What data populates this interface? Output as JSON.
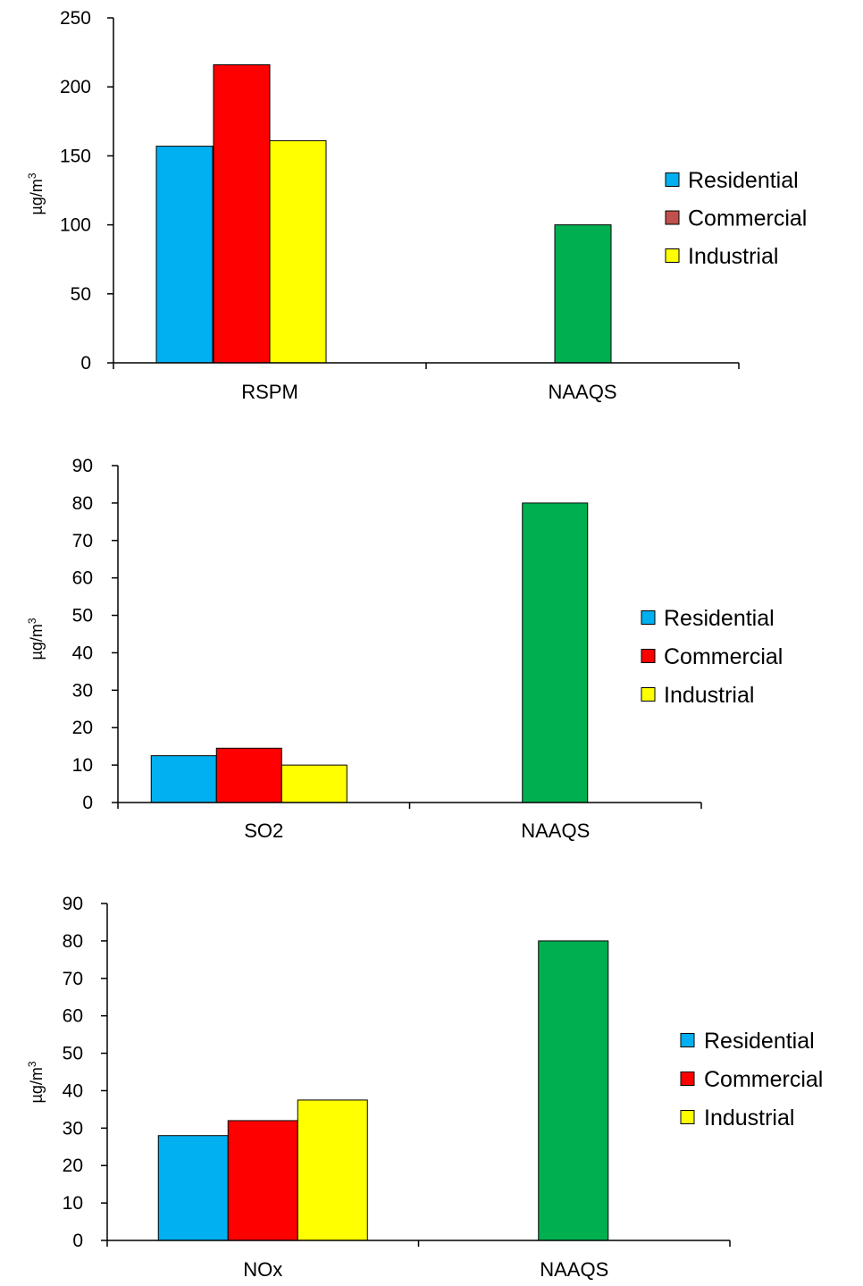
{
  "chart_data": [
    {
      "type": "bar",
      "categories": [
        "RSPM",
        "NAAQS"
      ],
      "ylabel": "µg/m",
      "ylabel_sup": "3",
      "ylim": [
        0,
        250
      ],
      "yticks": [
        0,
        50,
        100,
        150,
        200,
        250
      ],
      "grid": false,
      "legend_position": "right",
      "series": [
        {
          "name": "Residential",
          "color": "#00B0F0",
          "legend_color": "#00B0F0",
          "values": [
            157,
            null
          ]
        },
        {
          "name": "Commercial",
          "color": "#FF0000",
          "legend_color": "#C0504D",
          "values": [
            216,
            null
          ]
        },
        {
          "name": "Industrial",
          "color": "#FFFF00",
          "legend_color": "#FFFF00",
          "values": [
            161,
            null
          ]
        },
        {
          "name": "",
          "color": "#00B050",
          "values": [
            null,
            100
          ]
        }
      ]
    },
    {
      "type": "bar",
      "categories": [
        "SO2",
        "NAAQS"
      ],
      "ylabel": "µg/m",
      "ylabel_sup": "3",
      "ylim": [
        0,
        90
      ],
      "yticks": [
        0,
        10,
        20,
        30,
        40,
        50,
        60,
        70,
        80,
        90
      ],
      "grid": false,
      "legend_position": "right",
      "series": [
        {
          "name": "Residential",
          "color": "#00B0F0",
          "legend_color": "#00B0F0",
          "values": [
            12.5,
            null
          ]
        },
        {
          "name": "Commercial",
          "color": "#FF0000",
          "legend_color": "#FF0000",
          "values": [
            14.5,
            null
          ]
        },
        {
          "name": "Industrial",
          "color": "#FFFF00",
          "legend_color": "#FFFF00",
          "values": [
            10,
            null
          ]
        },
        {
          "name": "",
          "color": "#00B050",
          "values": [
            null,
            80
          ]
        }
      ]
    },
    {
      "type": "bar",
      "categories": [
        "NOx",
        "NAAQS"
      ],
      "ylabel": "µg/m",
      "ylabel_sup": "3",
      "ylim": [
        0,
        90
      ],
      "yticks": [
        0,
        10,
        20,
        30,
        40,
        50,
        60,
        70,
        80,
        90
      ],
      "grid": false,
      "legend_position": "right",
      "series": [
        {
          "name": "Residential",
          "color": "#00B0F0",
          "legend_color": "#00B0F0",
          "values": [
            28,
            null
          ]
        },
        {
          "name": "Commercial",
          "color": "#FF0000",
          "legend_color": "#FF0000",
          "values": [
            32,
            null
          ]
        },
        {
          "name": "Industrial",
          "color": "#FFFF00",
          "legend_color": "#FFFF00",
          "values": [
            37.5,
            null
          ]
        },
        {
          "name": "",
          "color": "#00B050",
          "values": [
            null,
            80
          ]
        }
      ]
    }
  ]
}
